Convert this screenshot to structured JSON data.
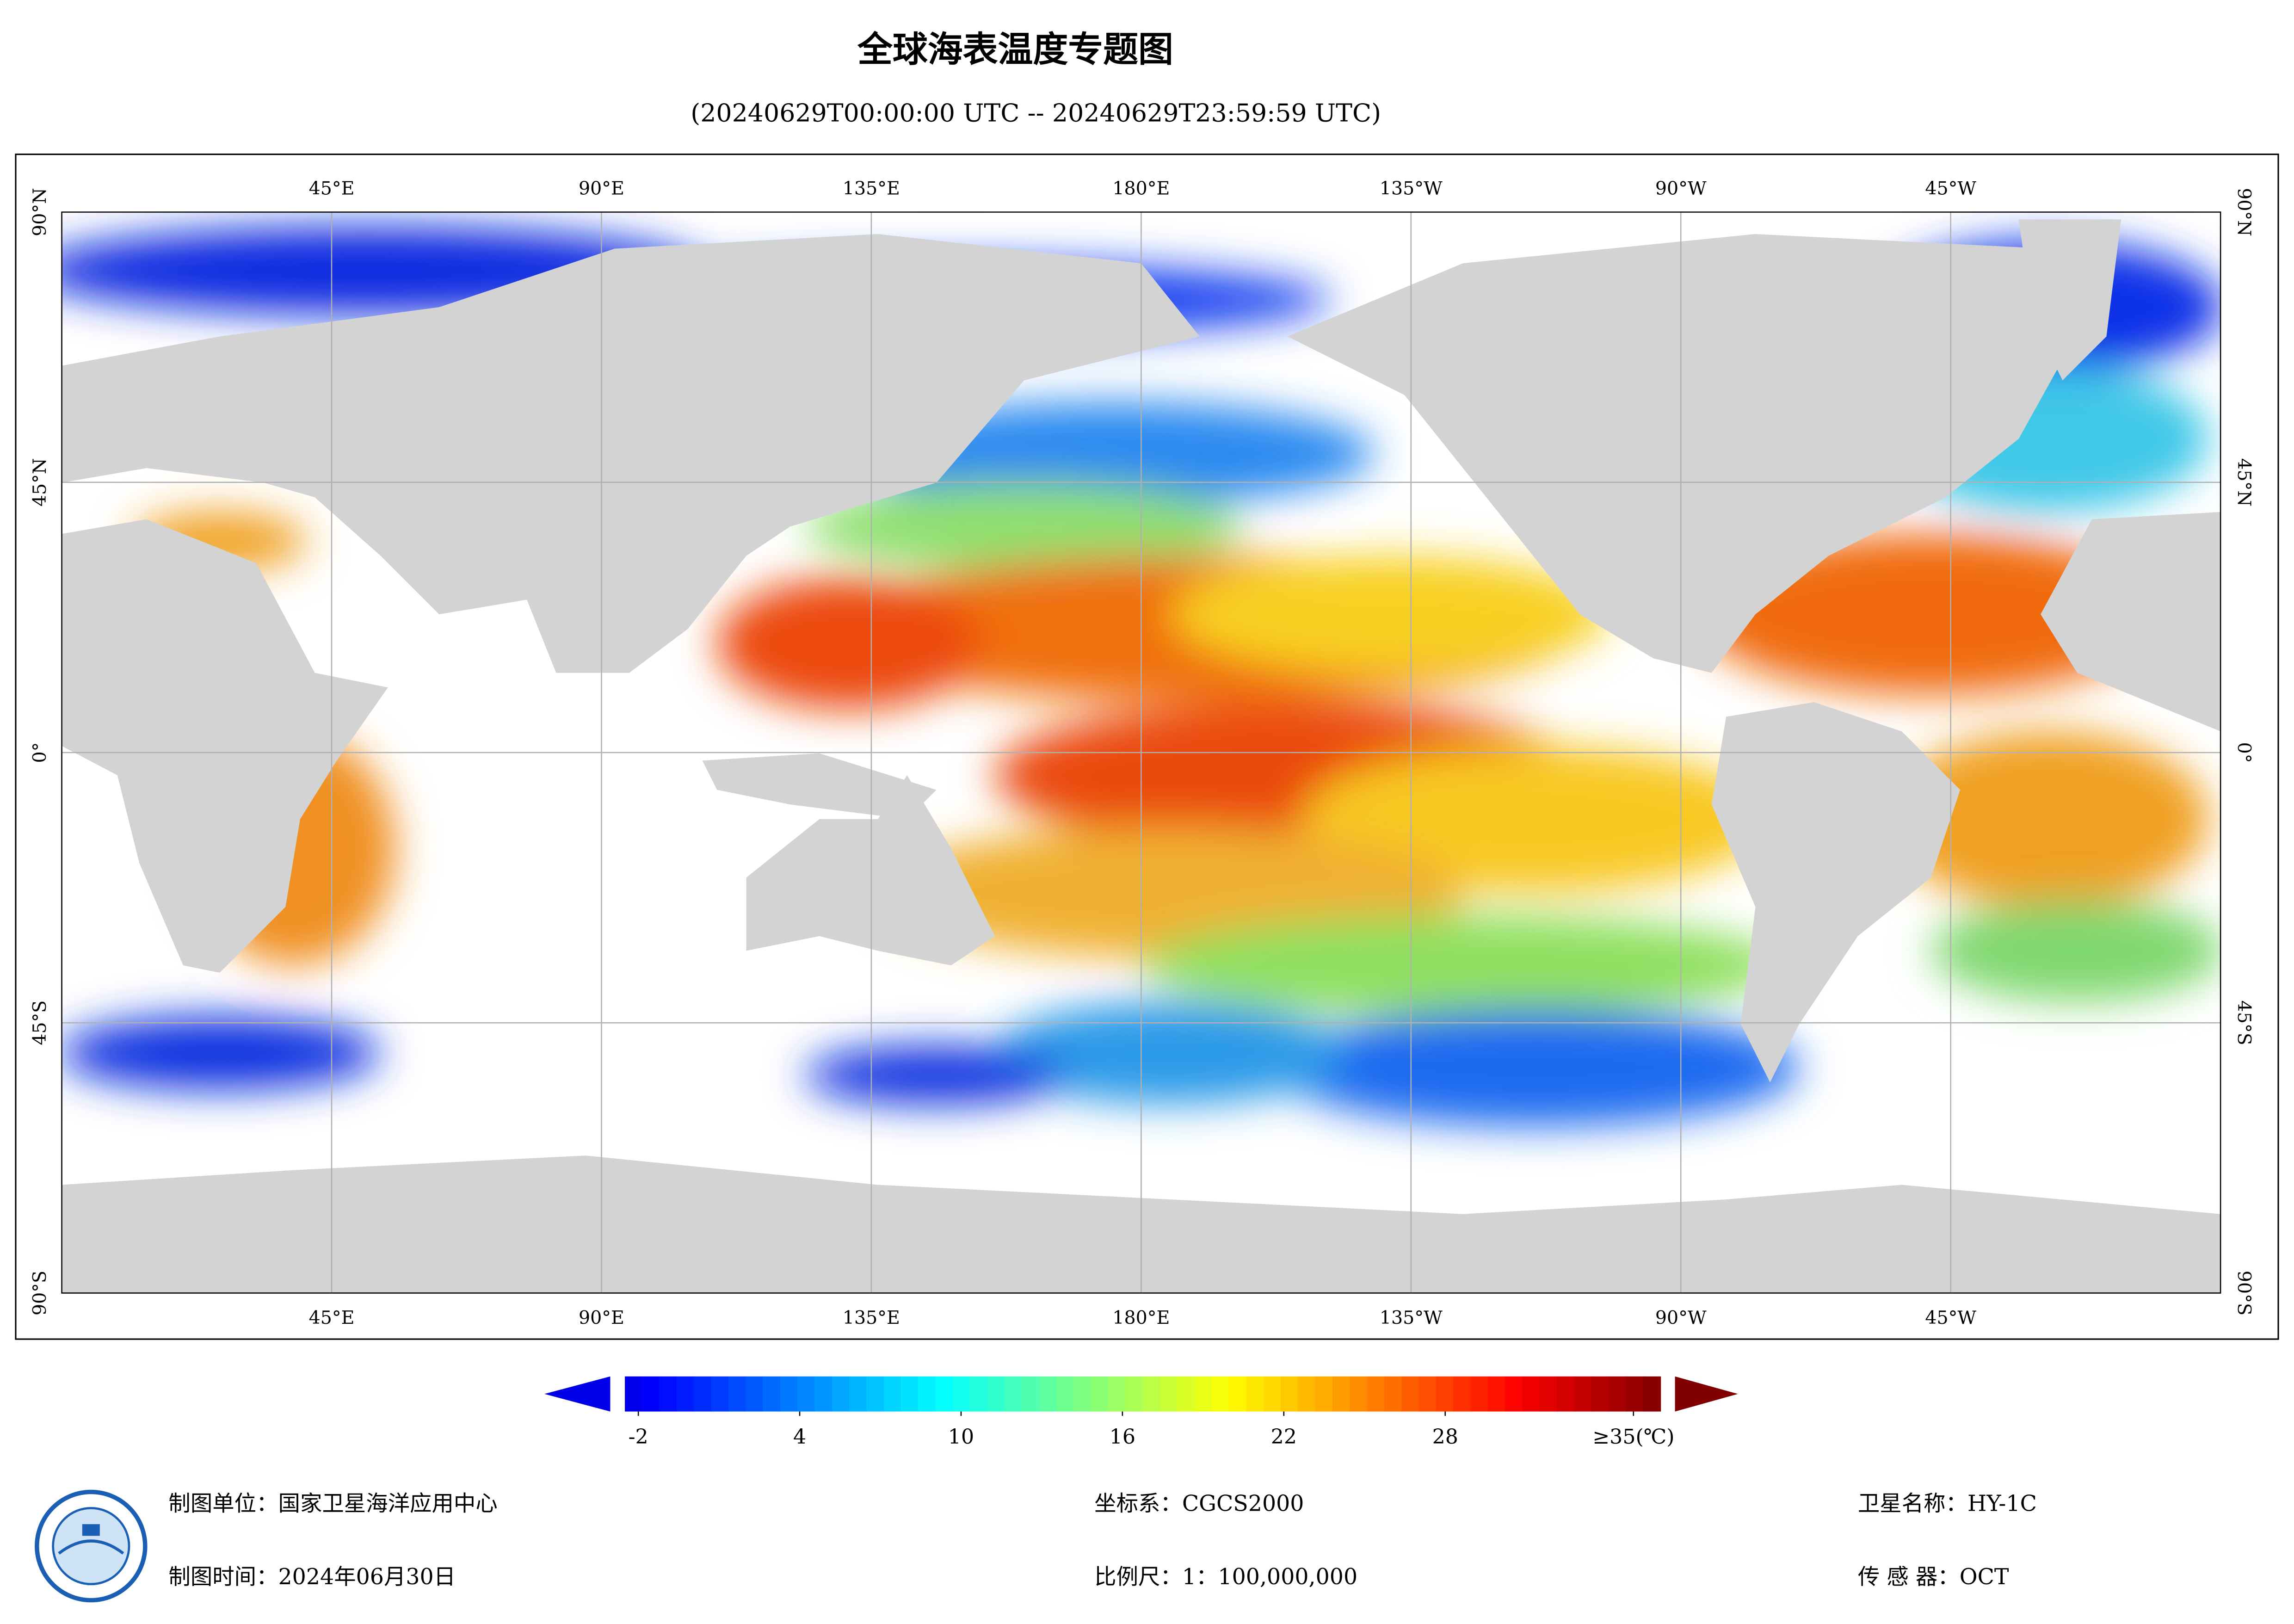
{
  "title": "全球海表温度专题图",
  "subtitle": "(20240629T00:00:00 UTC -- 20240629T23:59:59 UTC)",
  "map": {
    "lon_labels": [
      "45°E",
      "90°E",
      "135°E",
      "180°E",
      "135°W",
      "90°W",
      "45°W"
    ],
    "lat_labels": [
      "90°N",
      "45°N",
      "0°",
      "45°S",
      "90°S"
    ]
  },
  "colorbar": {
    "lim": [
      -2.5,
      36
    ],
    "ticks": [
      -2,
      4,
      10,
      16,
      22,
      28,
      {
        "value": 35,
        "label": "≥35(℃)"
      }
    ]
  },
  "footer": {
    "unit": "制图单位：国家卫星海洋应用中心",
    "date": "制图时间：2024年06月30日",
    "crs": "坐标系：CGCS2000",
    "scale": "比例尺：1：100,000,000",
    "satellite": "卫星名称：HY-1C",
    "sensor": "传 感 器：OCT"
  }
}
